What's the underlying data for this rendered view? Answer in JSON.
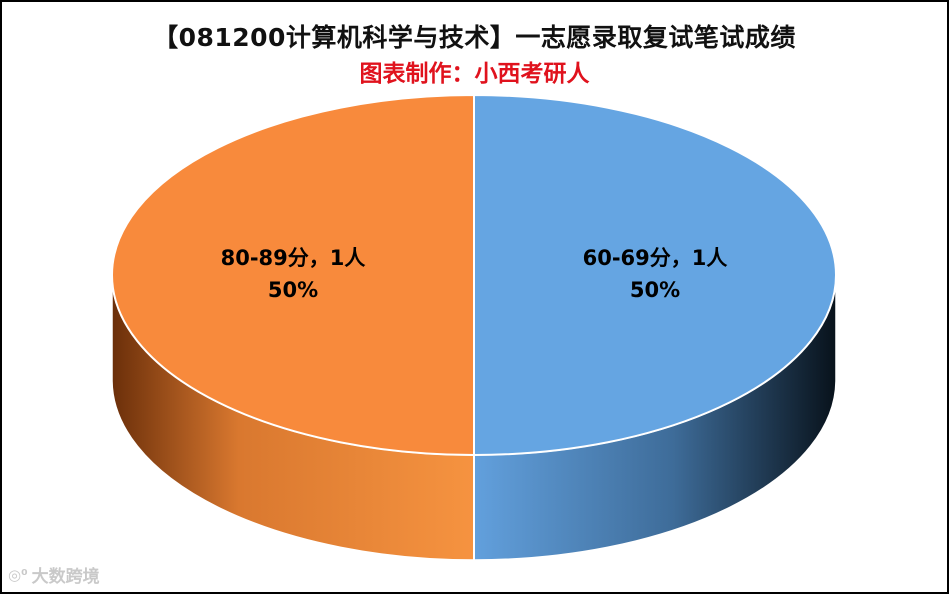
{
  "chart_data": {
    "type": "pie",
    "title": "【081200计算机科学与技术】一志愿录取复试笔试成绩",
    "subtitle": "图表制作：小西考研人",
    "slices": [
      {
        "label": "60-69分，1人",
        "percent": "50%",
        "count": 1,
        "value": 50,
        "color": "#65a5e2",
        "side_dark": "#0d1a26",
        "side_light": "#5f8fc4"
      },
      {
        "label": "80-89分，1人",
        "percent": "50%",
        "count": 1,
        "value": 50,
        "color": "#f88a3c",
        "side_dark": "#6b2f0a",
        "side_light": "#f2913e"
      }
    ],
    "style": "3d"
  },
  "watermark": {
    "text": "大数跨境",
    "logo_icon": "scan-logo-icon"
  }
}
